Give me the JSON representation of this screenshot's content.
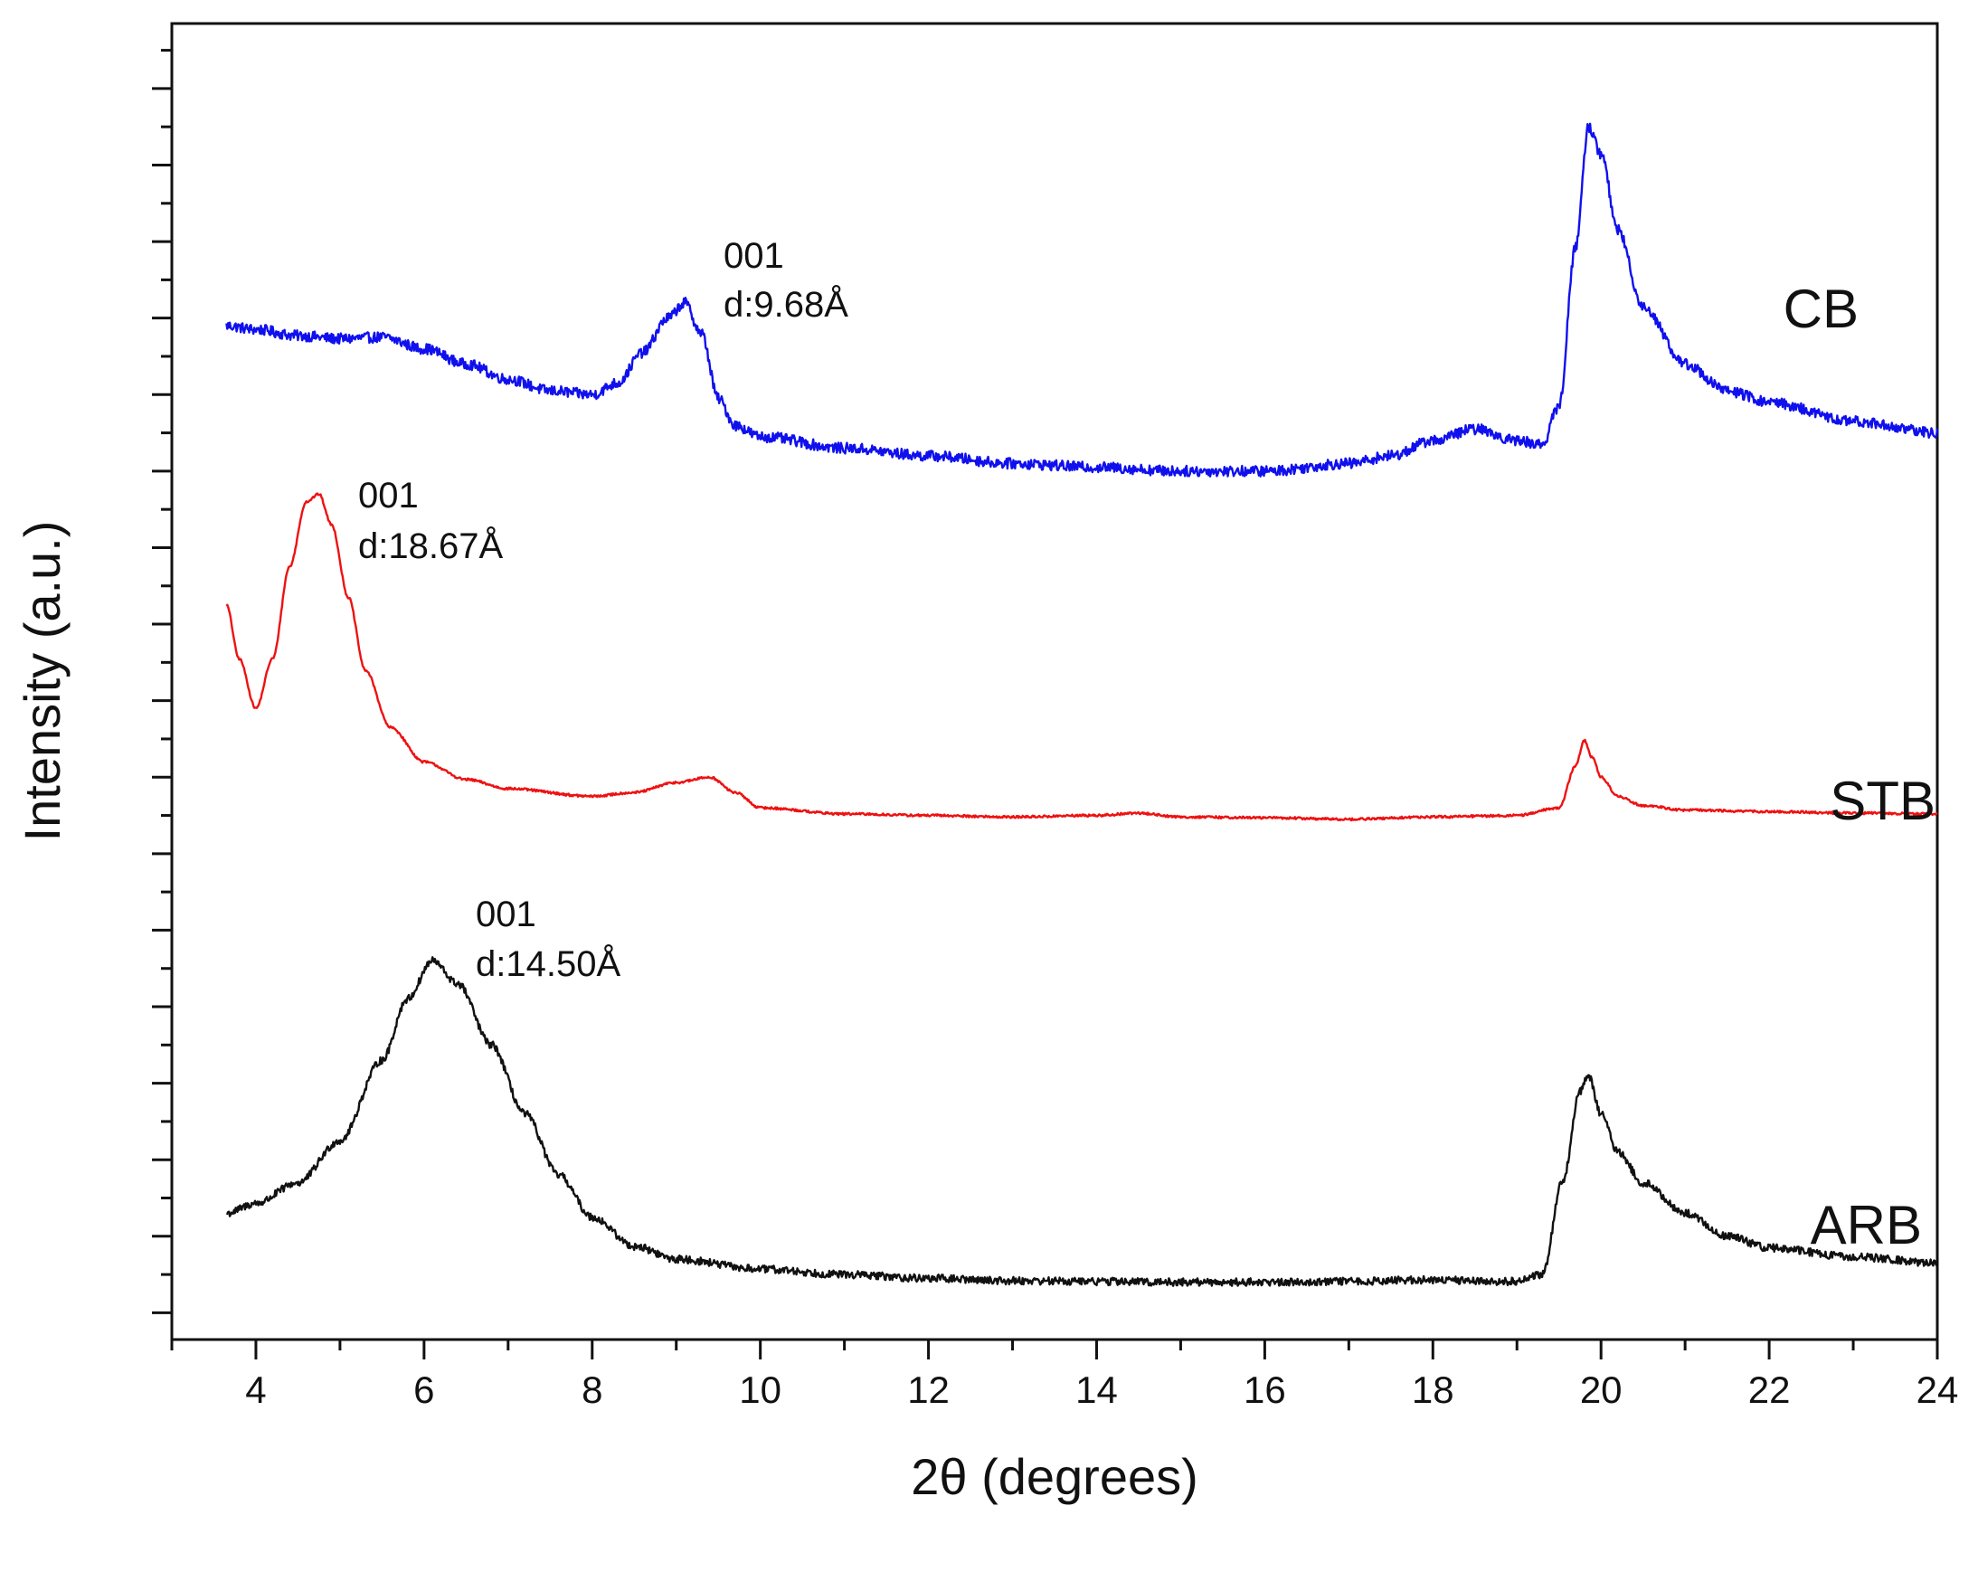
{
  "chart_data": {
    "type": "line",
    "title": "",
    "xlabel": "2θ (degrees)",
    "ylabel": "Intensity (a.u.)",
    "xlim": [
      3,
      24
    ],
    "ylim": [
      0,
      17.2
    ],
    "xticks": [
      4,
      6,
      8,
      10,
      12,
      14,
      16,
      18,
      20,
      22,
      24
    ],
    "y_tick_labels_shown": false,
    "grid": false,
    "series": [
      {
        "name": "CB",
        "color": "#1010ee",
        "noise": 0.07,
        "x": [
          3.65,
          4.0,
          4.5,
          5.0,
          5.5,
          6.0,
          6.5,
          7.0,
          7.5,
          8.0,
          8.3,
          8.6,
          8.9,
          9.1,
          9.3,
          9.5,
          9.7,
          10.0,
          11.0,
          12.0,
          13.0,
          14.0,
          15.0,
          16.0,
          17.0,
          17.5,
          18.0,
          18.5,
          19.0,
          19.3,
          19.5,
          19.7,
          19.85,
          20.0,
          20.2,
          20.5,
          21.0,
          21.5,
          22.0,
          23.0,
          24.0
        ],
        "y": [
          13.25,
          13.2,
          13.12,
          13.08,
          13.1,
          12.95,
          12.75,
          12.55,
          12.4,
          12.35,
          12.5,
          12.9,
          13.35,
          13.55,
          13.15,
          12.3,
          11.95,
          11.8,
          11.65,
          11.55,
          11.45,
          11.4,
          11.35,
          11.35,
          11.45,
          11.55,
          11.75,
          11.9,
          11.75,
          11.7,
          12.2,
          14.3,
          15.85,
          15.5,
          14.5,
          13.5,
          12.75,
          12.4,
          12.25,
          12.0,
          11.85
        ]
      },
      {
        "name": "STB",
        "color": "#ee1111",
        "noise": 0.015,
        "x": [
          3.65,
          3.8,
          4.0,
          4.2,
          4.4,
          4.6,
          4.75,
          4.9,
          5.1,
          5.3,
          5.6,
          6.0,
          6.5,
          7.0,
          8.0,
          8.5,
          9.0,
          9.4,
          9.7,
          10.0,
          11.0,
          12.0,
          13.0,
          14.0,
          14.5,
          15.0,
          16.0,
          17.0,
          18.0,
          19.0,
          19.5,
          19.7,
          19.8,
          19.9,
          20.0,
          20.2,
          20.5,
          21.0,
          22.0,
          23.0,
          24.0
        ],
        "y": [
          9.6,
          8.9,
          8.25,
          8.9,
          10.1,
          10.95,
          11.05,
          10.65,
          9.7,
          8.75,
          8.0,
          7.55,
          7.32,
          7.2,
          7.1,
          7.15,
          7.28,
          7.35,
          7.15,
          6.95,
          6.87,
          6.85,
          6.83,
          6.85,
          6.88,
          6.83,
          6.82,
          6.8,
          6.83,
          6.85,
          6.95,
          7.5,
          7.83,
          7.6,
          7.35,
          7.1,
          6.98,
          6.92,
          6.9,
          6.88,
          6.87
        ]
      },
      {
        "name": "ARB",
        "color": "#111111",
        "noise": 0.05,
        "x": [
          3.65,
          4.0,
          4.5,
          5.0,
          5.5,
          5.8,
          6.1,
          6.4,
          6.8,
          7.2,
          7.6,
          8.0,
          8.5,
          9.0,
          10.0,
          11.0,
          12.0,
          13.0,
          14.0,
          15.0,
          16.0,
          17.0,
          18.0,
          19.0,
          19.3,
          19.55,
          19.75,
          19.85,
          20.0,
          20.2,
          20.5,
          21.0,
          21.5,
          22.0,
          23.0,
          24.0
        ],
        "y": [
          1.65,
          1.78,
          2.05,
          2.6,
          3.65,
          4.45,
          4.95,
          4.65,
          3.85,
          2.95,
          2.15,
          1.6,
          1.22,
          1.05,
          0.92,
          0.85,
          0.8,
          0.77,
          0.76,
          0.75,
          0.75,
          0.76,
          0.78,
          0.76,
          0.85,
          2.1,
          3.25,
          3.45,
          2.95,
          2.45,
          2.05,
          1.65,
          1.35,
          1.2,
          1.08,
          1.0
        ]
      }
    ],
    "series_labels": [
      "CB",
      "STB",
      "ARB"
    ],
    "annotations": [
      {
        "series": "CB",
        "line1": "001",
        "line2": "d:9.68Å"
      },
      {
        "series": "STB",
        "line1": "001",
        "line2": "d:18.67Å"
      },
      {
        "series": "ARB",
        "line1": "001",
        "line2": "d:14.50Å"
      }
    ]
  }
}
